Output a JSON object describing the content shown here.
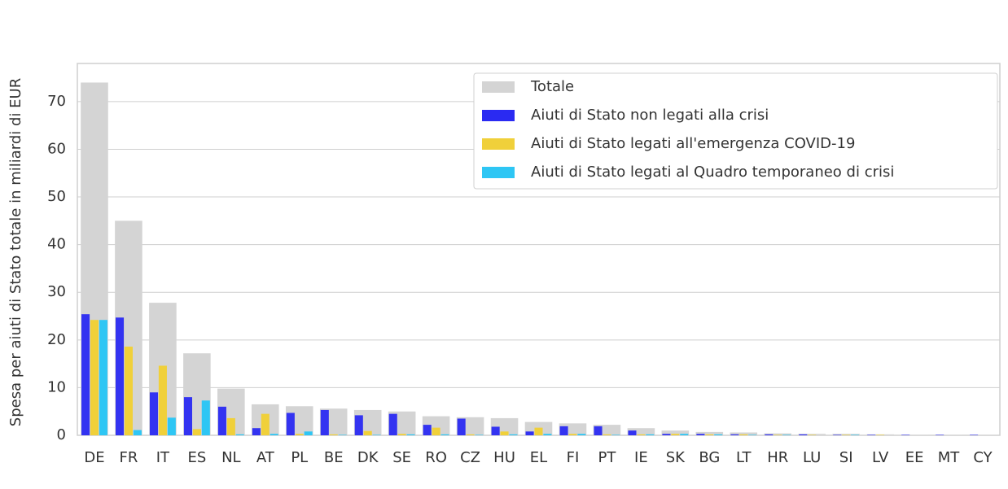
{
  "chart_data": {
    "type": "grouped_bar_overlay",
    "y_label": "Spesa per aiuti di Stato totale in miliardi di EUR",
    "categories": [
      "DE",
      "FR",
      "IT",
      "ES",
      "NL",
      "AT",
      "PL",
      "BE",
      "DK",
      "SE",
      "RO",
      "CZ",
      "HU",
      "EL",
      "FI",
      "PT",
      "IE",
      "SK",
      "BG",
      "LT",
      "HR",
      "LU",
      "SI",
      "LV",
      "EE",
      "MT",
      "CY"
    ],
    "series": [
      {
        "name": "Totale",
        "color": "#d4d4d4",
        "values": [
          74,
          45,
          27.8,
          17.2,
          9.8,
          6.5,
          6.1,
          5.6,
          5.3,
          5.0,
          4.0,
          3.8,
          3.6,
          2.8,
          2.5,
          2.2,
          1.5,
          1.0,
          0.7,
          0.6,
          0.4,
          0.3,
          0.3,
          0.2,
          0.1,
          0.1,
          0.1
        ]
      },
      {
        "name": "Aiuti di Stato non legati alla crisi",
        "color": "#2a2af2",
        "values": [
          25.4,
          24.7,
          9.0,
          8.0,
          6.0,
          1.5,
          4.7,
          5.3,
          4.2,
          4.5,
          2.2,
          3.5,
          1.8,
          0.8,
          1.9,
          1.9,
          1.0,
          0.3,
          0.3,
          0.2,
          0.2,
          0.2,
          0.1,
          0.1,
          0.1,
          0.1,
          0.1
        ]
      },
      {
        "name": "Aiuti di Stato legati all'emergenza COVID-19",
        "color": "#f0d03a",
        "values": [
          24.2,
          18.6,
          14.6,
          1.3,
          3.6,
          4.5,
          0.3,
          0.2,
          0.9,
          0.3,
          1.6,
          0.2,
          0.8,
          1.6,
          0.3,
          0.2,
          0.2,
          0.3,
          0.2,
          0.2,
          0.1,
          0.1,
          0.1,
          0.1,
          0,
          0,
          0
        ]
      },
      {
        "name": "Aiuti di Stato legati al Quadro temporaneo di crisi",
        "color": "#2ec6f4",
        "values": [
          24.2,
          1.1,
          3.7,
          7.3,
          0.2,
          0.3,
          0.8,
          0.1,
          0.1,
          0.2,
          0.2,
          0.1,
          0.2,
          0.3,
          0.3,
          0.1,
          0.2,
          0.3,
          0.2,
          0.1,
          0.1,
          0,
          0.1,
          0,
          0,
          0,
          0
        ]
      }
    ],
    "ylim": [
      0,
      78
    ],
    "yticks": [
      0,
      10,
      20,
      30,
      40,
      50,
      60,
      70
    ],
    "grid": true,
    "legend": "upper right"
  }
}
